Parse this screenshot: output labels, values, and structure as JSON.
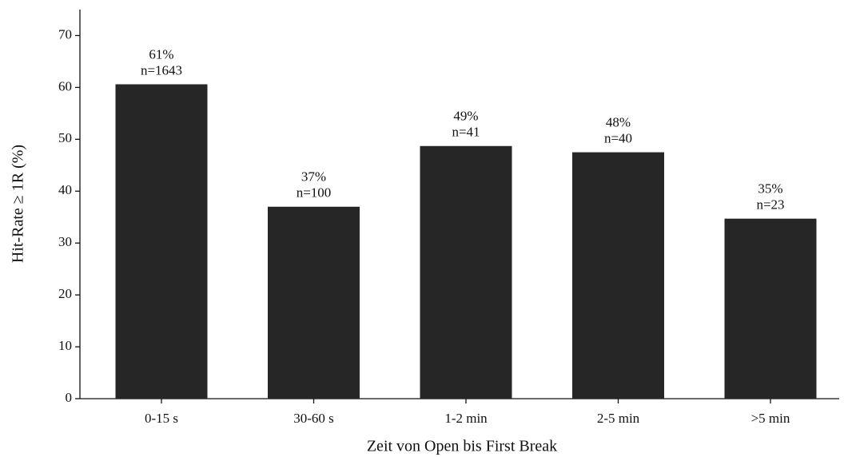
{
  "chart_data": {
    "type": "bar",
    "x_label": "Zeit von Open bis First Break",
    "y_label": "Hit-Rate ≥ 1R (%)",
    "categories": [
      "0-15 s",
      "30-60 s",
      "1-2 min",
      "2-5 min",
      ">5 min"
    ],
    "values": [
      60.6,
      37.0,
      48.7,
      47.5,
      34.7
    ],
    "value_labels": [
      "61%",
      "37%",
      "49%",
      "48%",
      "35%"
    ],
    "count_labels": [
      "n=1643",
      "n=100",
      "n=41",
      "n=40",
      "n=23"
    ],
    "color": "#262626",
    "ylim": [
      0,
      75
    ],
    "yticks": [
      0,
      10,
      20,
      30,
      40,
      50,
      60,
      70
    ],
    "grid": false
  }
}
